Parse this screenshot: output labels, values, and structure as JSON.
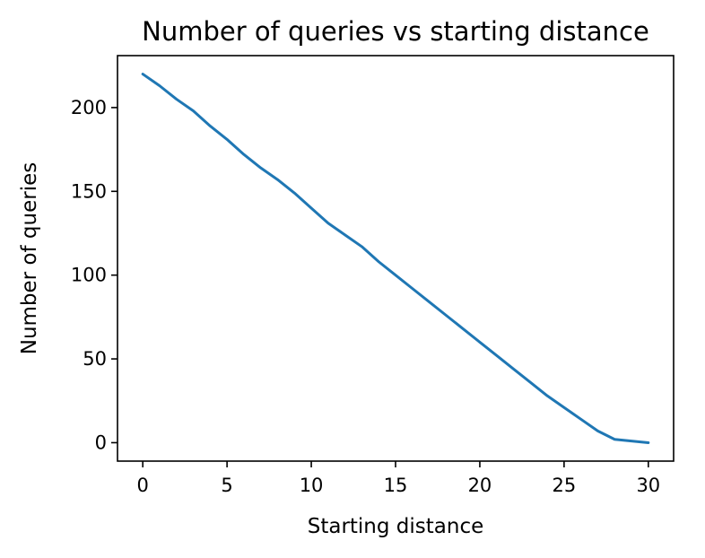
{
  "chart_data": {
    "type": "line",
    "title": "Number of queries vs starting distance",
    "xlabel": "Starting distance",
    "ylabel": "Number of queries",
    "xlim": [
      -1.5,
      31.5
    ],
    "ylim": [
      -11,
      231
    ],
    "xticks": [
      0,
      5,
      10,
      15,
      20,
      25,
      30
    ],
    "yticks": [
      0,
      50,
      100,
      150,
      200
    ],
    "xtick_labels": [
      "0",
      "5",
      "10",
      "15",
      "20",
      "25",
      "30"
    ],
    "ytick_labels": [
      "0",
      "50",
      "100",
      "150",
      "200"
    ],
    "grid": false,
    "series": [
      {
        "x": [
          0,
          1,
          2,
          3,
          4,
          5,
          6,
          7,
          8,
          9,
          10,
          11,
          12,
          13,
          14,
          15,
          16,
          17,
          18,
          19,
          20,
          21,
          22,
          23,
          24,
          25,
          26,
          27,
          28,
          29,
          30
        ],
        "values": [
          220,
          213,
          205,
          198,
          189,
          181,
          172,
          164,
          157,
          149,
          140,
          131,
          124,
          117,
          108,
          100,
          92,
          84,
          76,
          68,
          60,
          52,
          44,
          36,
          28,
          21,
          14,
          7,
          2,
          1,
          0
        ],
        "color": "#1f77b4"
      }
    ]
  }
}
